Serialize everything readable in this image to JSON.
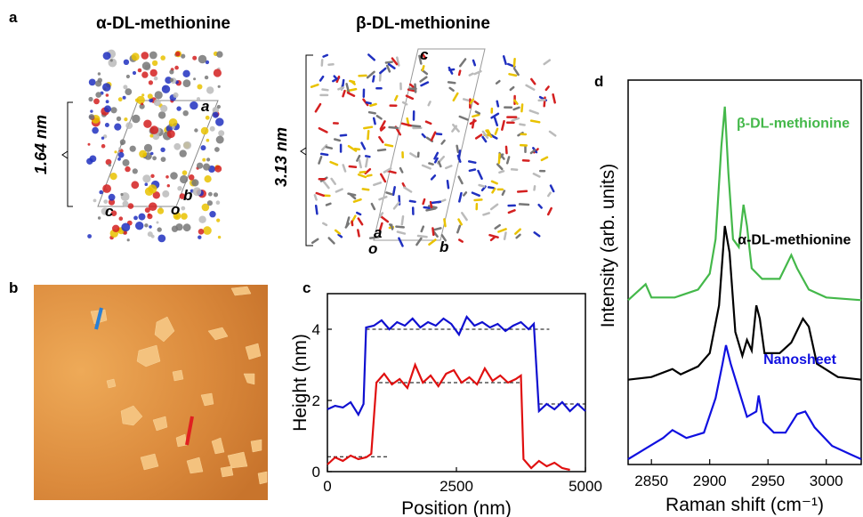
{
  "panels": {
    "a": "a",
    "b": "b",
    "c": "c",
    "d": "d"
  },
  "panel_a": {
    "alpha_title": "α-DL-methionine",
    "beta_title": "β-DL-methionine",
    "alpha_height": "1.64 nm",
    "beta_height": "3.13 nm",
    "alpha_axes": {
      "a": "a",
      "b": "b",
      "c": "c",
      "o": "o"
    },
    "beta_axes": {
      "a": "a",
      "b": "b",
      "c": "c",
      "o": "o"
    }
  },
  "panel_b": {
    "description_colors": {
      "background": "#d98a3a",
      "flake": "#f2c07a",
      "line_blue": "#2a7fd4",
      "line_red": "#e02020"
    }
  },
  "chart_data": [
    {
      "id": "c",
      "type": "line",
      "xlabel": "Position (nm)",
      "ylabel": "Height (nm)",
      "xlim": [
        0,
        5000
      ],
      "ylim": [
        0,
        5
      ],
      "xticks": [
        0,
        2500,
        5000
      ],
      "yticks": [
        0,
        2,
        4
      ],
      "series": [
        {
          "color": "#1010d0",
          "values": [
            [
              0,
              1.75
            ],
            [
              150,
              1.85
            ],
            [
              300,
              1.8
            ],
            [
              450,
              1.95
            ],
            [
              600,
              1.6
            ],
            [
              700,
              1.9
            ],
            [
              750,
              4.05
            ],
            [
              900,
              4.1
            ],
            [
              1050,
              4.25
            ],
            [
              1200,
              4.0
            ],
            [
              1350,
              4.2
            ],
            [
              1500,
              4.1
            ],
            [
              1650,
              4.3
            ],
            [
              1800,
              4.05
            ],
            [
              1950,
              4.2
            ],
            [
              2100,
              4.1
            ],
            [
              2250,
              4.3
            ],
            [
              2400,
              4.15
            ],
            [
              2550,
              3.85
            ],
            [
              2700,
              4.35
            ],
            [
              2850,
              4.1
            ],
            [
              3000,
              4.2
            ],
            [
              3150,
              4.05
            ],
            [
              3300,
              4.15
            ],
            [
              3450,
              3.95
            ],
            [
              3600,
              4.1
            ],
            [
              3750,
              4.2
            ],
            [
              3900,
              4.0
            ],
            [
              4000,
              4.15
            ],
            [
              4100,
              1.7
            ],
            [
              4250,
              1.9
            ],
            [
              4400,
              1.75
            ],
            [
              4550,
              1.95
            ],
            [
              4700,
              1.7
            ],
            [
              4850,
              1.9
            ],
            [
              5000,
              1.7
            ]
          ]
        },
        {
          "color": "#e01010",
          "values": [
            [
              0,
              0.2
            ],
            [
              150,
              0.4
            ],
            [
              300,
              0.3
            ],
            [
              450,
              0.45
            ],
            [
              600,
              0.35
            ],
            [
              750,
              0.4
            ],
            [
              850,
              0.5
            ],
            [
              950,
              2.5
            ],
            [
              1100,
              2.75
            ],
            [
              1250,
              2.45
            ],
            [
              1400,
              2.6
            ],
            [
              1550,
              2.35
            ],
            [
              1700,
              3.0
            ],
            [
              1850,
              2.5
            ],
            [
              2000,
              2.7
            ],
            [
              2150,
              2.4
            ],
            [
              2300,
              2.75
            ],
            [
              2450,
              2.85
            ],
            [
              2600,
              2.5
            ],
            [
              2750,
              2.65
            ],
            [
              2900,
              2.45
            ],
            [
              3050,
              2.9
            ],
            [
              3200,
              2.55
            ],
            [
              3350,
              2.7
            ],
            [
              3500,
              2.5
            ],
            [
              3650,
              2.6
            ],
            [
              3750,
              2.7
            ],
            [
              3800,
              0.35
            ],
            [
              3950,
              0.1
            ],
            [
              4100,
              0.3
            ],
            [
              4250,
              0.15
            ],
            [
              4400,
              0.25
            ],
            [
              4550,
              0.1
            ],
            [
              4700,
              0.05
            ]
          ]
        }
      ],
      "reference_lines": [
        {
          "y": 4.0,
          "x": [
            750,
            4300
          ]
        },
        {
          "y": 2.5,
          "x": [
            1000,
            3750
          ]
        },
        {
          "y": 0.42,
          "x": [
            0,
            1200
          ]
        },
        {
          "y": 1.9,
          "x": [
            4100,
            5000
          ]
        }
      ]
    },
    {
      "id": "d",
      "type": "line",
      "xlabel": "Raman shift (cm⁻¹)",
      "ylabel": "Intensity (arb. units)",
      "xlim": [
        2830,
        3030
      ],
      "xticks": [
        2850,
        2900,
        2950,
        3000
      ],
      "series": [
        {
          "name": "β-DL-methionine",
          "color": "#44b84a",
          "values": [
            [
              2830,
              0.62
            ],
            [
              2840,
              0.66
            ],
            [
              2845,
              0.68
            ],
            [
              2850,
              0.63
            ],
            [
              2870,
              0.63
            ],
            [
              2890,
              0.66
            ],
            [
              2900,
              0.72
            ],
            [
              2905,
              0.85
            ],
            [
              2910,
              1.2
            ],
            [
              2913,
              1.35
            ],
            [
              2916,
              1.1
            ],
            [
              2920,
              0.85
            ],
            [
              2925,
              0.82
            ],
            [
              2929,
              0.98
            ],
            [
              2932,
              0.9
            ],
            [
              2936,
              0.74
            ],
            [
              2945,
              0.7
            ],
            [
              2960,
              0.7
            ],
            [
              2970,
              0.79
            ],
            [
              2975,
              0.74
            ],
            [
              2985,
              0.66
            ],
            [
              3000,
              0.63
            ],
            [
              3030,
              0.62
            ]
          ]
        },
        {
          "name": "α-DL-methionine",
          "color": "#000000",
          "values": [
            [
              2830,
              0.32
            ],
            [
              2850,
              0.33
            ],
            [
              2868,
              0.36
            ],
            [
              2875,
              0.34
            ],
            [
              2890,
              0.37
            ],
            [
              2900,
              0.42
            ],
            [
              2908,
              0.6
            ],
            [
              2913,
              0.9
            ],
            [
              2917,
              0.8
            ],
            [
              2922,
              0.5
            ],
            [
              2928,
              0.41
            ],
            [
              2932,
              0.47
            ],
            [
              2936,
              0.43
            ],
            [
              2940,
              0.6
            ],
            [
              2943,
              0.55
            ],
            [
              2947,
              0.42
            ],
            [
              2960,
              0.42
            ],
            [
              2970,
              0.46
            ],
            [
              2980,
              0.55
            ],
            [
              2985,
              0.52
            ],
            [
              2992,
              0.38
            ],
            [
              3010,
              0.33
            ],
            [
              3030,
              0.32
            ]
          ]
        },
        {
          "name": "Nanosheet",
          "color": "#1010e0",
          "values": [
            [
              2830,
              0.02
            ],
            [
              2845,
              0.06
            ],
            [
              2860,
              0.1
            ],
            [
              2868,
              0.13
            ],
            [
              2880,
              0.1
            ],
            [
              2895,
              0.12
            ],
            [
              2905,
              0.25
            ],
            [
              2911,
              0.38
            ],
            [
              2914,
              0.45
            ],
            [
              2918,
              0.38
            ],
            [
              2925,
              0.28
            ],
            [
              2932,
              0.18
            ],
            [
              2940,
              0.2
            ],
            [
              2942,
              0.26
            ],
            [
              2946,
              0.16
            ],
            [
              2955,
              0.12
            ],
            [
              2965,
              0.12
            ],
            [
              2975,
              0.19
            ],
            [
              2982,
              0.2
            ],
            [
              2990,
              0.14
            ],
            [
              3005,
              0.07
            ],
            [
              3020,
              0.04
            ],
            [
              3030,
              0.02
            ]
          ]
        }
      ]
    }
  ]
}
